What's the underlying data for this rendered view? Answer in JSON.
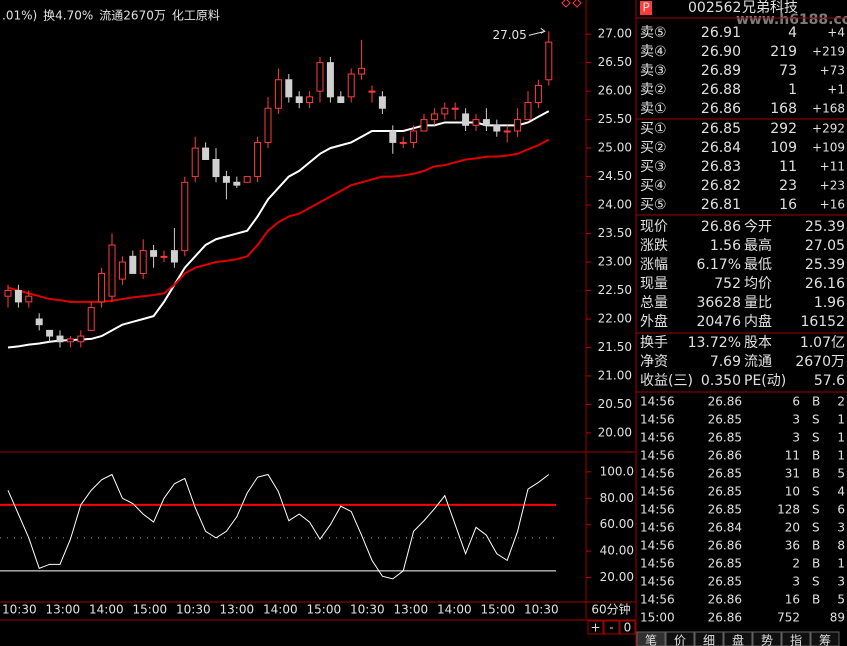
{
  "chart_data": [
    {
      "type": "candlestick",
      "open": [
        22.4,
        22.5,
        22.3,
        22.0,
        21.8,
        21.7,
        21.6,
        21.6,
        21.8,
        22.3,
        22.4,
        22.7,
        23.1,
        22.8,
        23.2,
        23.1,
        23.2,
        23.2,
        24.5,
        25.0,
        24.8,
        24.5,
        24.4,
        24.4,
        24.5,
        25.1,
        25.7,
        26.2,
        25.9,
        25.8,
        26.0,
        26.5,
        25.9,
        25.9,
        26.3,
        26.0,
        25.9,
        25.3,
        25.1,
        25.1,
        25.3,
        25.5,
        25.6,
        25.7,
        25.6,
        25.4,
        25.5,
        25.4,
        25.3,
        25.3,
        25.5,
        25.8,
        26.2
      ],
      "high": [
        22.6,
        22.6,
        22.5,
        22.1,
        21.8,
        21.8,
        21.7,
        21.8,
        22.3,
        22.9,
        23.5,
        23.1,
        23.2,
        23.4,
        23.3,
        23.2,
        23.6,
        24.5,
        25.2,
        25.1,
        25.0,
        24.6,
        24.5,
        24.5,
        25.2,
        25.9,
        26.4,
        26.3,
        26.0,
        26.0,
        26.6,
        26.6,
        26.0,
        26.4,
        26.9,
        26.1,
        26.0,
        25.4,
        25.2,
        25.4,
        25.6,
        25.7,
        25.8,
        25.8,
        25.7,
        25.6,
        25.7,
        25.5,
        25.4,
        25.7,
        26.0,
        26.2,
        27.05
      ],
      "low": [
        22.2,
        22.2,
        22.2,
        21.8,
        21.6,
        21.5,
        21.5,
        21.5,
        21.8,
        22.2,
        22.3,
        22.6,
        22.8,
        22.7,
        22.9,
        23.0,
        22.9,
        23.1,
        24.4,
        24.8,
        24.4,
        24.1,
        24.3,
        24.4,
        24.4,
        25.0,
        25.6,
        25.8,
        25.7,
        25.7,
        25.8,
        25.8,
        25.8,
        25.8,
        26.2,
        25.8,
        25.6,
        24.9,
        25.0,
        25.0,
        25.3,
        25.4,
        25.5,
        25.5,
        25.3,
        25.3,
        25.3,
        25.2,
        25.1,
        25.2,
        25.5,
        25.7,
        26.1
      ],
      "close": [
        22.5,
        22.3,
        22.4,
        21.9,
        21.7,
        21.6,
        21.65,
        21.7,
        22.2,
        22.8,
        23.3,
        23.0,
        22.8,
        23.2,
        23.1,
        23.1,
        23.0,
        24.4,
        25.0,
        24.8,
        24.5,
        24.4,
        24.35,
        24.5,
        25.1,
        25.7,
        26.2,
        25.9,
        25.8,
        25.9,
        26.5,
        25.9,
        25.8,
        26.3,
        26.4,
        26.0,
        25.7,
        25.1,
        25.1,
        25.3,
        25.5,
        25.6,
        25.7,
        25.7,
        25.4,
        25.5,
        25.4,
        25.3,
        25.3,
        25.5,
        25.8,
        26.1,
        26.86
      ],
      "up_color": "#ff3c3c",
      "down_color": "#d0d0d0",
      "lines": [
        {
          "color": "#ffffff",
          "values": [
            21.5,
            21.52,
            21.55,
            21.57,
            21.6,
            21.62,
            21.63,
            21.64,
            21.65,
            21.7,
            21.8,
            21.9,
            21.95,
            22.0,
            22.05,
            22.3,
            22.6,
            22.9,
            23.1,
            23.3,
            23.4,
            23.45,
            23.5,
            23.55,
            23.8,
            24.1,
            24.3,
            24.5,
            24.6,
            24.75,
            24.9,
            25.0,
            25.05,
            25.1,
            25.2,
            25.3,
            25.3,
            25.3,
            25.3,
            25.35,
            25.4,
            25.4,
            25.45,
            25.45,
            25.45,
            25.45,
            25.4,
            25.4,
            25.4,
            25.4,
            25.45,
            25.55,
            25.65
          ]
        },
        {
          "color": "#e00000",
          "values": [
            22.55,
            22.5,
            22.45,
            22.4,
            22.35,
            22.33,
            22.3,
            22.3,
            22.3,
            22.3,
            22.32,
            22.35,
            22.38,
            22.4,
            22.42,
            22.45,
            22.6,
            22.8,
            22.9,
            22.95,
            23.0,
            23.02,
            23.05,
            23.1,
            23.3,
            23.55,
            23.7,
            23.8,
            23.85,
            23.95,
            24.05,
            24.15,
            24.25,
            24.35,
            24.4,
            24.45,
            24.5,
            24.5,
            24.52,
            24.55,
            24.6,
            24.68,
            24.7,
            24.75,
            24.8,
            24.82,
            24.85,
            24.85,
            24.87,
            24.9,
            24.98,
            25.05,
            25.15
          ]
        }
      ],
      "annotation": "27.05",
      "ylim": [
        19.7,
        27.6
      ],
      "yticks": [
        {
          "value": 20,
          "label": "20.00"
        },
        {
          "value": 20.5,
          "label": "20.50"
        },
        {
          "value": 21,
          "label": "21.00"
        },
        {
          "value": 21.5,
          "label": "21.50"
        },
        {
          "value": 22,
          "label": "22.00"
        },
        {
          "value": 22.5,
          "label": "22.50"
        },
        {
          "value": 23,
          "label": "23.00"
        },
        {
          "value": 23.5,
          "label": "23.50"
        },
        {
          "value": 24,
          "label": "24.00"
        },
        {
          "value": 24.5,
          "label": "24.50"
        },
        {
          "value": 25,
          "label": "25.00"
        },
        {
          "value": 25.5,
          "label": "25.50"
        },
        {
          "value": 26,
          "label": "26.00"
        },
        {
          "value": 26.5,
          "label": "26.50"
        },
        {
          "value": 27,
          "label": "27.00"
        }
      ]
    },
    {
      "type": "line",
      "color": "#ffffff",
      "values": [
        86,
        68,
        50,
        27,
        30,
        30,
        49,
        75,
        86,
        94,
        98,
        80,
        76,
        68,
        62,
        80,
        91,
        95,
        73,
        55,
        50,
        55,
        66,
        84,
        96,
        98,
        85,
        63,
        68,
        62,
        49,
        60,
        74,
        70,
        52,
        33,
        21,
        19,
        25,
        55,
        63,
        72,
        82,
        60,
        38,
        58,
        52,
        38,
        33,
        55,
        87,
        92,
        98
      ],
      "levels": [
        {
          "value": 75,
          "color": "#ff0000"
        },
        {
          "value": 50,
          "color": "#909090"
        },
        {
          "value": 25,
          "color": "#ffffff"
        }
      ],
      "ylim": [
        3,
        112
      ],
      "yticks": [
        {
          "value": 20,
          "label": "20.00"
        },
        {
          "value": 40,
          "label": "40.00"
        },
        {
          "value": 60,
          "label": "60.00"
        },
        {
          "value": 80,
          "label": "80.00"
        },
        {
          "value": 100,
          "label": "100.0"
        }
      ]
    }
  ],
  "x_axis": {
    "labels": [
      "10:30",
      "13:00",
      "14:00",
      "15:00",
      "10:30",
      "13:00",
      "14:00",
      "15:00",
      "10:30",
      "13:00",
      "14:00",
      "15:00",
      "10:30"
    ],
    "period": "60分钟",
    "buttons": [
      "+",
      "-",
      "0"
    ]
  },
  "header": {
    "items": [
      ".01%)",
      "换4.70%",
      "流通2670万",
      "化工原料"
    ]
  },
  "panel": {
    "icon": "P",
    "code": "002562",
    "name": "兄弟科技",
    "watermark": "www.h6188.com",
    "asks": [
      [
        "卖⑤",
        "26.91",
        "4",
        "+4"
      ],
      [
        "卖④",
        "26.90",
        "219",
        "+219"
      ],
      [
        "卖③",
        "26.89",
        "73",
        "+73"
      ],
      [
        "卖②",
        "26.88",
        "1",
        "+1"
      ],
      [
        "卖①",
        "26.86",
        "168",
        "+168"
      ]
    ],
    "bids": [
      [
        "买①",
        "26.85",
        "292",
        "+292"
      ],
      [
        "买②",
        "26.84",
        "109",
        "+109"
      ],
      [
        "买③",
        "26.83",
        "11",
        "+11"
      ],
      [
        "买④",
        "26.82",
        "23",
        "+23"
      ],
      [
        "买⑤",
        "26.81",
        "16",
        "+16"
      ]
    ],
    "stats": [
      {
        "label": "现价",
        "value": "26.86",
        "color": "#ff3c3c",
        "label2": "今开",
        "value2": "25.39",
        "color2": "#ff3c3c"
      },
      {
        "label": "涨跌",
        "value": "1.56",
        "color": "#ff3c3c",
        "label2": "最高",
        "value2": "27.05",
        "color2": "#ff3c3c"
      },
      {
        "label": "涨幅",
        "value": "6.17%",
        "color": "#ff3c3c",
        "label2": "最低",
        "value2": "25.39",
        "color2": "#ff3c3c"
      },
      {
        "label": "现量",
        "value": "752",
        "color": "#c040ff",
        "label2": "均价",
        "value2": "26.16",
        "color2": "#ff3c3c"
      },
      {
        "label": "总量",
        "value": "36628",
        "color": "#ffff00",
        "label2": "量比",
        "value2": "1.96",
        "color2": "#ff3c3c"
      },
      {
        "label": "外盘",
        "value": "20476",
        "color": "#ff3c3c",
        "label2": "内盘",
        "value2": "16152",
        "color2": "#00e600"
      }
    ],
    "info": [
      {
        "label": "换手",
        "value": "13.72%",
        "label2": "股本",
        "value2": "1.07亿"
      },
      {
        "label": "净资",
        "value": "7.69",
        "label2": "流通",
        "value2": "2670万"
      },
      {
        "label": "收益(三)",
        "value": "0.350",
        "label2": "PE(动)",
        "value2": "57.6"
      }
    ],
    "trades": [
      {
        "time": "14:56",
        "price": "26.86",
        "vol": "6",
        "side": "B",
        "n": "2"
      },
      {
        "time": "14:56",
        "price": "26.85",
        "vol": "3",
        "side": "S",
        "n": "1"
      },
      {
        "time": "14:56",
        "price": "26.85",
        "vol": "3",
        "side": "S",
        "n": "1"
      },
      {
        "time": "14:56",
        "price": "26.86",
        "vol": "11",
        "side": "B",
        "n": "1"
      },
      {
        "time": "14:56",
        "price": "26.85",
        "vol": "31",
        "side": "B",
        "n": "5"
      },
      {
        "time": "14:56",
        "price": "26.85",
        "vol": "10",
        "side": "S",
        "n": "4"
      },
      {
        "time": "14:56",
        "price": "26.85",
        "vol": "128",
        "side": "S",
        "n": "6"
      },
      {
        "time": "14:56",
        "price": "26.84",
        "vol": "20",
        "side": "S",
        "n": "3"
      },
      {
        "time": "14:56",
        "price": "26.86",
        "vol": "36",
        "side": "B",
        "n": "8"
      },
      {
        "time": "14:56",
        "price": "26.85",
        "vol": "2",
        "side": "B",
        "n": "1"
      },
      {
        "time": "14:56",
        "price": "26.85",
        "vol": "3",
        "side": "S",
        "n": "3"
      },
      {
        "time": "14:56",
        "price": "26.86",
        "vol": "16",
        "side": "B",
        "n": "5"
      },
      {
        "time": "15:00",
        "price": "26.86",
        "vol": "752",
        "n": "89"
      }
    ],
    "tabs": [
      "笔",
      "价",
      "细",
      "盘",
      "势",
      "指",
      "筹"
    ]
  }
}
